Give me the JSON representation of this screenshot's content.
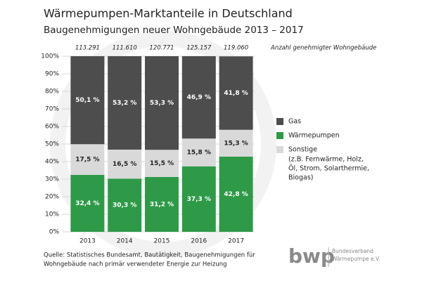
{
  "chart_data": {
    "type": "stacked_bar",
    "title": "Wärmepumpen-Marktanteile in Deutschland",
    "subtitle": "Baugenehmigungen neuer Wohngebäude 2013 – 2017",
    "categories": [
      "2013",
      "2014",
      "2015",
      "2016",
      "2017"
    ],
    "series": [
      {
        "name": "Wärmepumpen",
        "color": "#2e9a48",
        "values": [
          32.4,
          30.3,
          31.2,
          37.3,
          42.8
        ],
        "value_labels": [
          "32,4 %",
          "30,3 %",
          "31,2 %",
          "37,3 %",
          "42,8 %"
        ]
      },
      {
        "name": "Sonstige",
        "color": "#d9d9d9",
        "values": [
          17.5,
          16.5,
          15.5,
          15.8,
          15.3
        ],
        "value_labels": [
          "17,5 %",
          "16,5 %",
          "15,5 %",
          "15,8 %",
          "15,3 %"
        ]
      },
      {
        "name": "Gas",
        "color": "#4d4d4d",
        "values": [
          50.1,
          53.2,
          53.3,
          46.9,
          41.8
        ],
        "value_labels": [
          "50,1 %",
          "53,2 %",
          "53,3 %",
          "46,9 %",
          "41,8 %"
        ]
      }
    ],
    "legend_order": [
      "Gas",
      "Wärmepumpen",
      "Sonstige"
    ],
    "legend_note": [
      "(z.B. Fernwärme, Holz,",
      "Öl, Strom, Solarthermie,",
      "Biogas)"
    ],
    "totals": {
      "label": "Anzahl genehmigter Wohngebäude",
      "values": [
        113291,
        111610,
        120771,
        125157,
        119060
      ],
      "value_labels": [
        "113.291",
        "111.610",
        "120.771",
        "125.157",
        "119.060"
      ]
    },
    "ylim": [
      0,
      100
    ],
    "yticks": [
      {
        "value": 0,
        "label": "0%"
      },
      {
        "value": 10,
        "label": "10%"
      },
      {
        "value": 20,
        "label": "20%"
      },
      {
        "value": 30,
        "label": "30%"
      },
      {
        "value": 40,
        "label": "40%"
      },
      {
        "value": 50,
        "label": "50%"
      },
      {
        "value": 60,
        "label": "60%"
      },
      {
        "value": 70,
        "label": "70%"
      },
      {
        "value": 80,
        "label": "80%"
      },
      {
        "value": 90,
        "label": "90%"
      },
      {
        "value": 100,
        "label": "100%"
      }
    ],
    "grid": true,
    "source": [
      "Quelle: Statistisches Bundesamt, Bautätigkeit, Baugenehmigungen für",
      "Wohngebäude nach primär verwendeter Energie zur Heizung"
    ],
    "logo": {
      "text": "bwp",
      "lines": [
        "Bundesverband",
        "Wärmepumpe e.V."
      ]
    }
  }
}
